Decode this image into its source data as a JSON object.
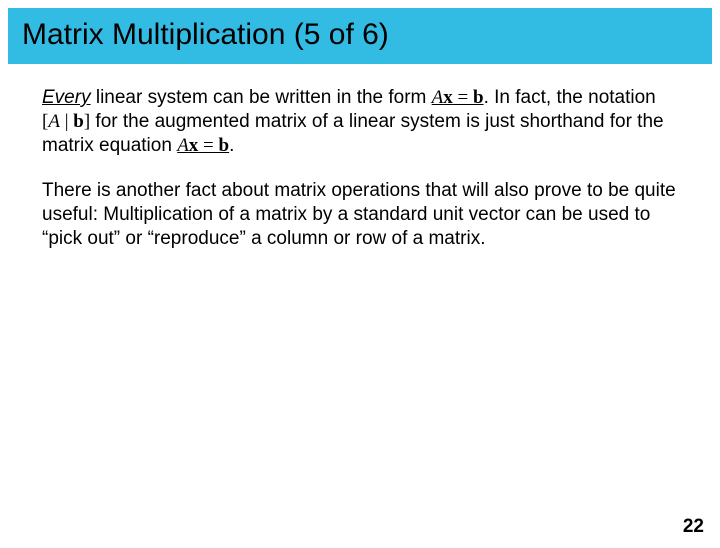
{
  "title": "Matrix Multiplication (5 of 6)",
  "p1": {
    "t1": "Every",
    "t2": " linear system can be written in the form ",
    "eqA": "A",
    "eqx": "x",
    "eqEq": " = ",
    "eqb": "b",
    "t3": ". In fact, the notation ",
    "augL": "[",
    "augA": "A",
    "augBar": " | ",
    "augb": "b",
    "augR": "]",
    "t4": " for the augmented matrix of a linear system is just shorthand for the matrix equation ",
    "eqA2": "A",
    "eqx2": "x",
    "eqEq2": " = ",
    "eqb2": "b",
    "t5": "."
  },
  "p2": "There is another fact about matrix operations that will also prove to be quite useful: Multiplication of a matrix by a standard unit vector can be used to “pick out” or “reproduce” a column or row of a matrix.",
  "pageNumber": "22"
}
